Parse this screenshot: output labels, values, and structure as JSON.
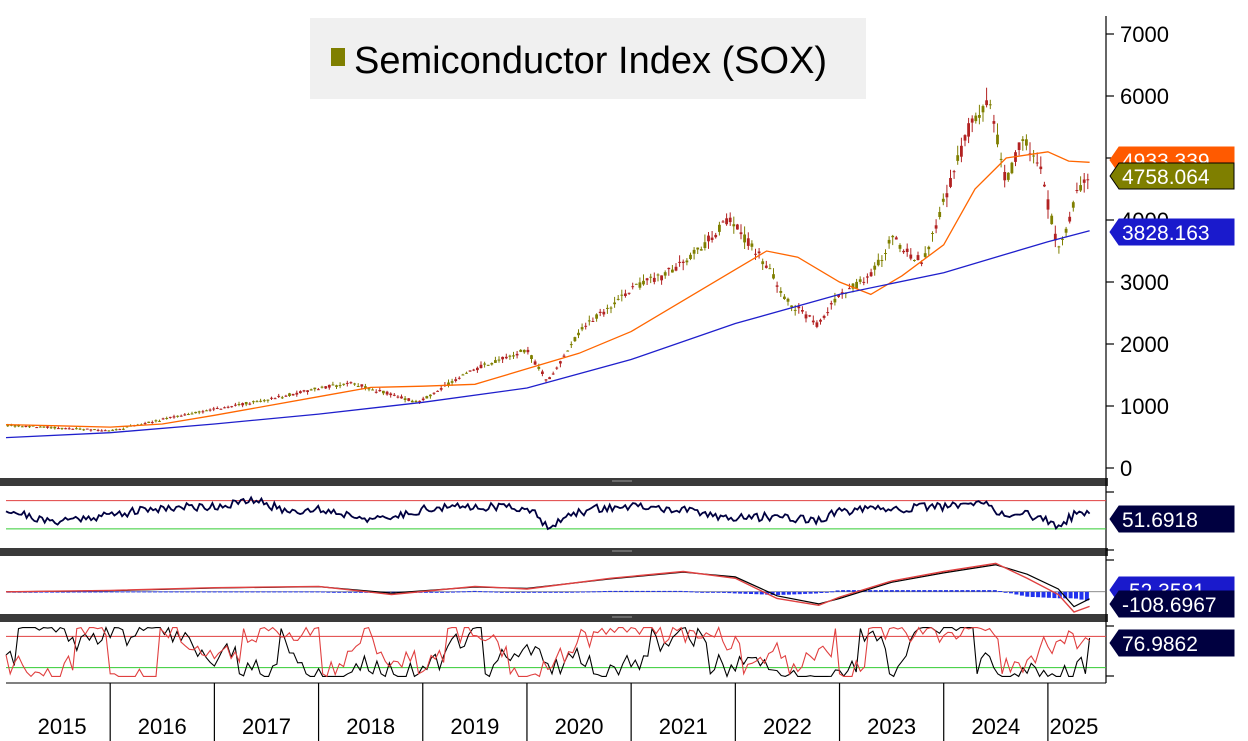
{
  "legend": {
    "label": "Semiconductor Index (SOX)",
    "color": "#7f7f00"
  },
  "colors": {
    "up": "#7f7f00",
    "down": "#b22222",
    "ma_short": "#ff6600",
    "ma_long": "#1f1fcc",
    "osc_line": "#000040",
    "upper_band": "#e04040",
    "lower_band": "#33cc33",
    "hist": "#2233ee",
    "tag_dark": "#000040",
    "tag_price": "#7f7f00",
    "tag_blue": "#1a1acc",
    "tag_orange": "#ff5a00"
  },
  "chart_data": [
    {
      "type": "line",
      "title": "Semiconductor Index (SOX)",
      "x_labels": [
        "2015",
        "2016",
        "2017",
        "2018",
        "2019",
        "2020",
        "2021",
        "2022",
        "2023",
        "2024",
        "2025"
      ],
      "x_range": [
        2015.0,
        2025.5
      ],
      "ylim": [
        0,
        7000
      ],
      "y_ticks": [
        0,
        1000,
        2000,
        3000,
        4000,
        5000,
        6000,
        7000
      ],
      "y_tick_labels": [
        "0",
        "1000",
        "2000",
        "3000",
        "4000",
        "5000",
        "6000",
        "7000"
      ],
      "grid": false,
      "legend_position": "top-center",
      "series": [
        {
          "name": "Semiconductor Index (SOX)",
          "x": [
            2015.0,
            2015.5,
            2016.0,
            2016.5,
            2017.0,
            2017.5,
            2018.0,
            2018.3,
            2018.95,
            2019.5,
            2020.0,
            2020.2,
            2020.5,
            2021.0,
            2021.3,
            2021.5,
            2021.95,
            2022.25,
            2022.5,
            2022.8,
            2023.0,
            2023.3,
            2023.5,
            2023.8,
            2024.0,
            2024.25,
            2024.45,
            2024.6,
            2024.75,
            2024.9,
            2025.1,
            2025.3,
            2025.4
          ],
          "values": [
            690,
            650,
            600,
            780,
            950,
            1100,
            1280,
            1380,
            1060,
            1600,
            1900,
            1400,
            2200,
            2900,
            3100,
            3300,
            4000,
            3400,
            2700,
            2300,
            2800,
            3100,
            3700,
            3300,
            4300,
            5500,
            5900,
            4600,
            5300,
            5000,
            3500,
            4500,
            4758.064
          ]
        },
        {
          "name": "",
          "x": [
            2015.0,
            2015.5,
            2016.0,
            2016.5,
            2017.0,
            2017.5,
            2018.0,
            2018.5,
            2019.0,
            2019.5,
            2020.0,
            2020.5,
            2021.0,
            2021.5,
            2022.0,
            2022.3,
            2022.6,
            2023.0,
            2023.3,
            2023.6,
            2024.0,
            2024.3,
            2024.6,
            2025.0,
            2025.2,
            2025.4
          ],
          "values": [
            700,
            680,
            660,
            710,
            850,
            1000,
            1150,
            1300,
            1320,
            1350,
            1600,
            1850,
            2200,
            2700,
            3200,
            3500,
            3400,
            3000,
            2800,
            3100,
            3600,
            4500,
            5000,
            5100,
            4950,
            4930
          ]
        },
        {
          "name": "",
          "x": [
            2015.0,
            2016.0,
            2017.0,
            2018.0,
            2019.0,
            2020.0,
            2021.0,
            2022.0,
            2023.0,
            2024.0,
            2025.0,
            2025.4
          ],
          "values": [
            490,
            570,
            710,
            870,
            1060,
            1290,
            1750,
            2330,
            2800,
            3150,
            3650,
            3828.163
          ]
        }
      ],
      "value_tags": [
        {
          "text": "4933.339",
          "role": "short average"
        },
        {
          "text": "4758.064",
          "role": "last price"
        },
        {
          "text": "3828.163",
          "role": "long average"
        }
      ]
    },
    {
      "type": "line",
      "x_range": [
        2015.0,
        2025.5
      ],
      "ylim": [
        20,
        85
      ],
      "upper_level": 70,
      "lower_level": 30,
      "series": [
        {
          "name": "",
          "x": [
            2015.0,
            2015.4,
            2016.0,
            2016.5,
            2017.0,
            2017.4,
            2017.7,
            2018.0,
            2018.6,
            2019.0,
            2019.5,
            2020.0,
            2020.2,
            2020.6,
            2021.0,
            2021.5,
            2022.0,
            2022.4,
            2022.8,
            2023.0,
            2023.5,
            2024.0,
            2024.4,
            2024.6,
            2024.8,
            2025.1,
            2025.3,
            2025.4
          ],
          "values": [
            58,
            40,
            50,
            60,
            62,
            70,
            55,
            58,
            42,
            58,
            62,
            60,
            35,
            58,
            62,
            56,
            45,
            48,
            42,
            55,
            58,
            62,
            66,
            48,
            52,
            34,
            55,
            51.6918
          ]
        }
      ],
      "value_tags": [
        {
          "text": "51.6918"
        }
      ]
    },
    {
      "type": "line",
      "x_range": [
        2015.0,
        2025.5
      ],
      "ylim": [
        -150,
        250
      ],
      "zero_line": 0,
      "series": [
        {
          "name": "",
          "x": [
            2015.0,
            2016.0,
            2017.0,
            2018.0,
            2018.7,
            2019.5,
            2020.0,
            2020.8,
            2021.5,
            2022.0,
            2022.4,
            2022.8,
            2023.0,
            2023.5,
            2024.0,
            2024.5,
            2024.8,
            2025.1,
            2025.25,
            2025.4
          ],
          "values": [
            0,
            10,
            30,
            40,
            -20,
            40,
            20,
            100,
            150,
            100,
            -50,
            -100,
            -40,
            80,
            150,
            210,
            100,
            -20,
            -150,
            -108.6967
          ]
        },
        {
          "name": "",
          "x": [
            2015.0,
            2016.0,
            2017.0,
            2018.0,
            2018.7,
            2019.5,
            2020.0,
            2020.8,
            2021.5,
            2022.0,
            2022.4,
            2022.8,
            2023.0,
            2023.5,
            2024.0,
            2024.5,
            2024.8,
            2025.1,
            2025.25,
            2025.4
          ],
          "values": [
            0,
            8,
            28,
            38,
            -10,
            35,
            25,
            95,
            145,
            110,
            -30,
            -90,
            -50,
            70,
            140,
            200,
            130,
            20,
            -110,
            -52.3581
          ]
        }
      ],
      "value_tags": [
        {
          "text": "-52.3581"
        },
        {
          "text": "-108.6967"
        }
      ]
    },
    {
      "type": "line",
      "x_range": [
        2015.0,
        2025.5
      ],
      "ylim": [
        0,
        100
      ],
      "upper_level": 80,
      "lower_level": 20,
      "series": [
        {
          "name": "",
          "seed": 7,
          "last": 76.9862
        },
        {
          "name": "",
          "seed": 11,
          "last": 72.0
        }
      ],
      "value_tags": [
        {
          "text": "76.9862"
        }
      ]
    }
  ]
}
